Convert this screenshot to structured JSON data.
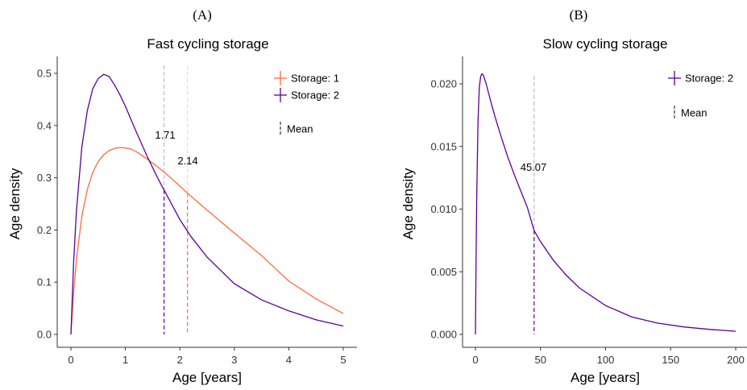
{
  "chart_data": [
    {
      "panel": "(A)",
      "type": "line",
      "title": "Fast cycling storage",
      "xlabel": "Age [years]",
      "ylabel": "Age density",
      "xlim": [
        0,
        5
      ],
      "ylim": [
        0,
        0.5
      ],
      "xticks": [
        "0",
        "1",
        "2",
        "3",
        "4",
        "5"
      ],
      "yticks": [
        "0.0",
        "0.1",
        "0.2",
        "0.3",
        "0.4",
        "0.5"
      ],
      "legend_position": "top-right",
      "mean_legend_label": "Mean",
      "series": [
        {
          "name": "Storage: 1",
          "color": "#FF6A3D",
          "x": [
            0,
            0.05,
            0.1,
            0.2,
            0.3,
            0.4,
            0.5,
            0.6,
            0.7,
            0.8,
            0.9,
            1.0,
            1.1,
            1.2,
            1.4,
            1.6,
            1.8,
            2.0,
            2.2,
            2.5,
            3.0,
            3.5,
            4.0,
            4.5,
            5.0
          ],
          "y": [
            0,
            0.081,
            0.142,
            0.226,
            0.277,
            0.31,
            0.331,
            0.344,
            0.352,
            0.356,
            0.358,
            0.357,
            0.355,
            0.35,
            0.336,
            0.32,
            0.303,
            0.284,
            0.265,
            0.238,
            0.194,
            0.151,
            0.102,
            0.068,
            0.04
          ],
          "mean": 2.14,
          "mean_label": "2.14"
        },
        {
          "name": "Storage: 2",
          "color": "#5B0098",
          "x": [
            0,
            0.05,
            0.1,
            0.2,
            0.3,
            0.4,
            0.5,
            0.6,
            0.7,
            0.8,
            0.9,
            1.0,
            1.1,
            1.2,
            1.4,
            1.6,
            1.8,
            2.0,
            2.2,
            2.5,
            3.0,
            3.5,
            4.0,
            4.5,
            5.0
          ],
          "y": [
            0,
            0.14,
            0.235,
            0.358,
            0.428,
            0.47,
            0.49,
            0.498,
            0.494,
            0.478,
            0.459,
            0.437,
            0.412,
            0.388,
            0.341,
            0.298,
            0.259,
            0.22,
            0.188,
            0.148,
            0.097,
            0.066,
            0.045,
            0.028,
            0.016
          ],
          "mean": 1.71,
          "mean_label": "1.71"
        }
      ]
    },
    {
      "panel": "(B)",
      "type": "line",
      "title": "Slow cycling storage",
      "xlabel": "Age [years]",
      "ylabel": "Age density",
      "xlim": [
        0,
        200
      ],
      "ylim": [
        0,
        0.02
      ],
      "xticks": [
        "0",
        "50",
        "100",
        "150",
        "200"
      ],
      "yticks": [
        "0.000",
        "0.005",
        "0.010",
        "0.015",
        "0.020"
      ],
      "legend_position": "top-right",
      "mean_legend_label": "Mean",
      "series": [
        {
          "name": "Storage: 2",
          "color": "#5B0098",
          "x": [
            0,
            0.5,
            1,
            2,
            3,
            4,
            5,
            6,
            7,
            8,
            10,
            12,
            15,
            20,
            25,
            30,
            40,
            45,
            50,
            60,
            70,
            80,
            100,
            120,
            140,
            160,
            180,
            200
          ],
          "y": [
            0,
            0.006,
            0.011,
            0.017,
            0.0197,
            0.0206,
            0.0208,
            0.0207,
            0.0204,
            0.0201,
            0.0193,
            0.0185,
            0.0174,
            0.0157,
            0.0141,
            0.0127,
            0.0101,
            0.0083,
            0.0074,
            0.0059,
            0.0047,
            0.0037,
            0.0023,
            0.0014,
            0.0009,
            0.0006,
            0.0004,
            0.00025
          ],
          "mean": 45.07,
          "mean_label": "45.07"
        }
      ]
    }
  ]
}
